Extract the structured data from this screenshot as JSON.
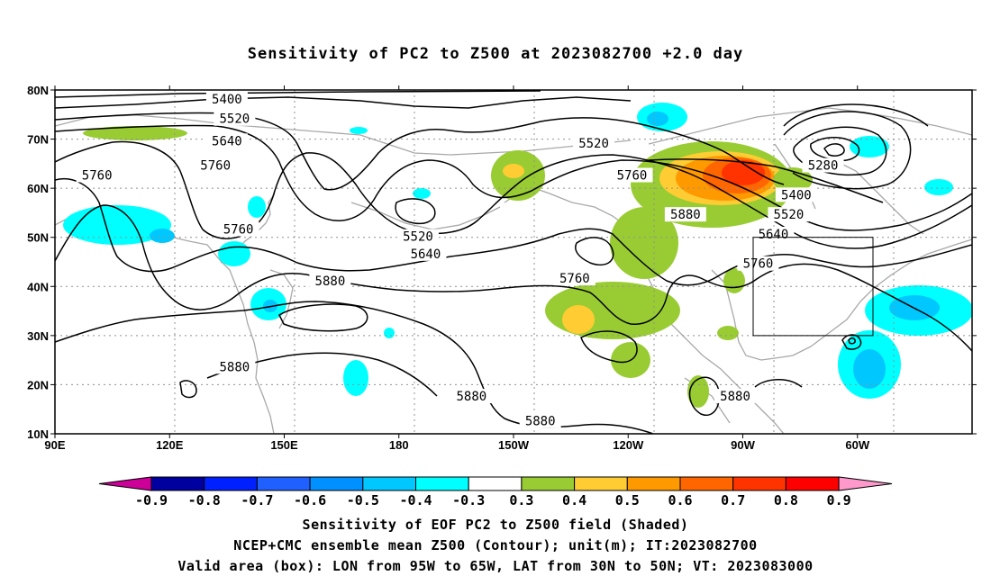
{
  "title": "Sensitivity of PC2 to Z500 at 2023082700 +2.0 day",
  "map": {
    "lat_labels": [
      "80N",
      "70N",
      "60N",
      "50N",
      "40N",
      "30N",
      "20N",
      "10N"
    ],
    "lon_labels": [
      "90E",
      "120E",
      "150E",
      "180",
      "150W",
      "120W",
      "90W",
      "60W"
    ],
    "valid_box": {
      "lon_min": -95,
      "lon_max": -65,
      "lat_min": 30,
      "lat_max": 50
    },
    "contour_labels": [
      {
        "text": "5400",
        "lon": 135,
        "lat": 78
      },
      {
        "text": "5520",
        "lon": 137,
        "lat": 74
      },
      {
        "text": "5640",
        "lon": 135,
        "lat": 69.5
      },
      {
        "text": "5760",
        "lon": 101,
        "lat": 62.5
      },
      {
        "text": "5760",
        "lon": 132,
        "lat": 64.5
      },
      {
        "text": "5760",
        "lon": 138,
        "lat": 51.5
      },
      {
        "text": "5880",
        "lon": 162,
        "lat": 41
      },
      {
        "text": "5880",
        "lon": 137,
        "lat": 23.5
      },
      {
        "text": "5520",
        "lon": 185,
        "lat": 50
      },
      {
        "text": "5640",
        "lon": 187,
        "lat": 46.5
      },
      {
        "text": "5880",
        "lon": 199,
        "lat": 17.5
      },
      {
        "text": "5880",
        "lon": 217,
        "lat": 12.5
      },
      {
        "text": "5760",
        "lon": 226,
        "lat": 41.5
      },
      {
        "text": "5520",
        "lon": 231,
        "lat": 69
      },
      {
        "text": "5760",
        "lon": 241,
        "lat": 62.5
      },
      {
        "text": "5880",
        "lon": 255,
        "lat": 54.5
      },
      {
        "text": "5280",
        "lon": 291,
        "lat": 64.5
      },
      {
        "text": "5400",
        "lon": 284,
        "lat": 58.5
      },
      {
        "text": "5520",
        "lon": 282,
        "lat": 54.5
      },
      {
        "text": "5640",
        "lon": 278,
        "lat": 50.5
      },
      {
        "text": "5760",
        "lon": 274,
        "lat": 44.5
      },
      {
        "text": "5880",
        "lon": 268,
        "lat": 17.5
      }
    ]
  },
  "colorbar": {
    "labels": [
      "-0.9",
      "-0.8",
      "-0.7",
      "-0.6",
      "-0.5",
      "-0.4",
      "-0.3",
      "0.3",
      "0.4",
      "0.5",
      "0.6",
      "0.7",
      "0.8",
      "0.9"
    ],
    "colors": [
      "#0000a0",
      "#0020ff",
      "#2060ff",
      "#0090ff",
      "#00c8ff",
      "#00ffff",
      "#ffffff",
      "#99cc33",
      "#ffcc33",
      "#ff9900",
      "#ff6600",
      "#ff3300",
      "#ff0000"
    ],
    "low_end_color": "#cc0099",
    "high_end_color": "#ff99cc"
  },
  "captions": [
    "Sensitivity of EOF PC2 to Z500 field (Shaded)",
    "NCEP+CMC ensemble mean Z500 (Contour); unit(m); IT:2023082700",
    "Valid area (box): LON from 95W to 65W, LAT from 30N to 50N; VT: 2023083000"
  ]
}
